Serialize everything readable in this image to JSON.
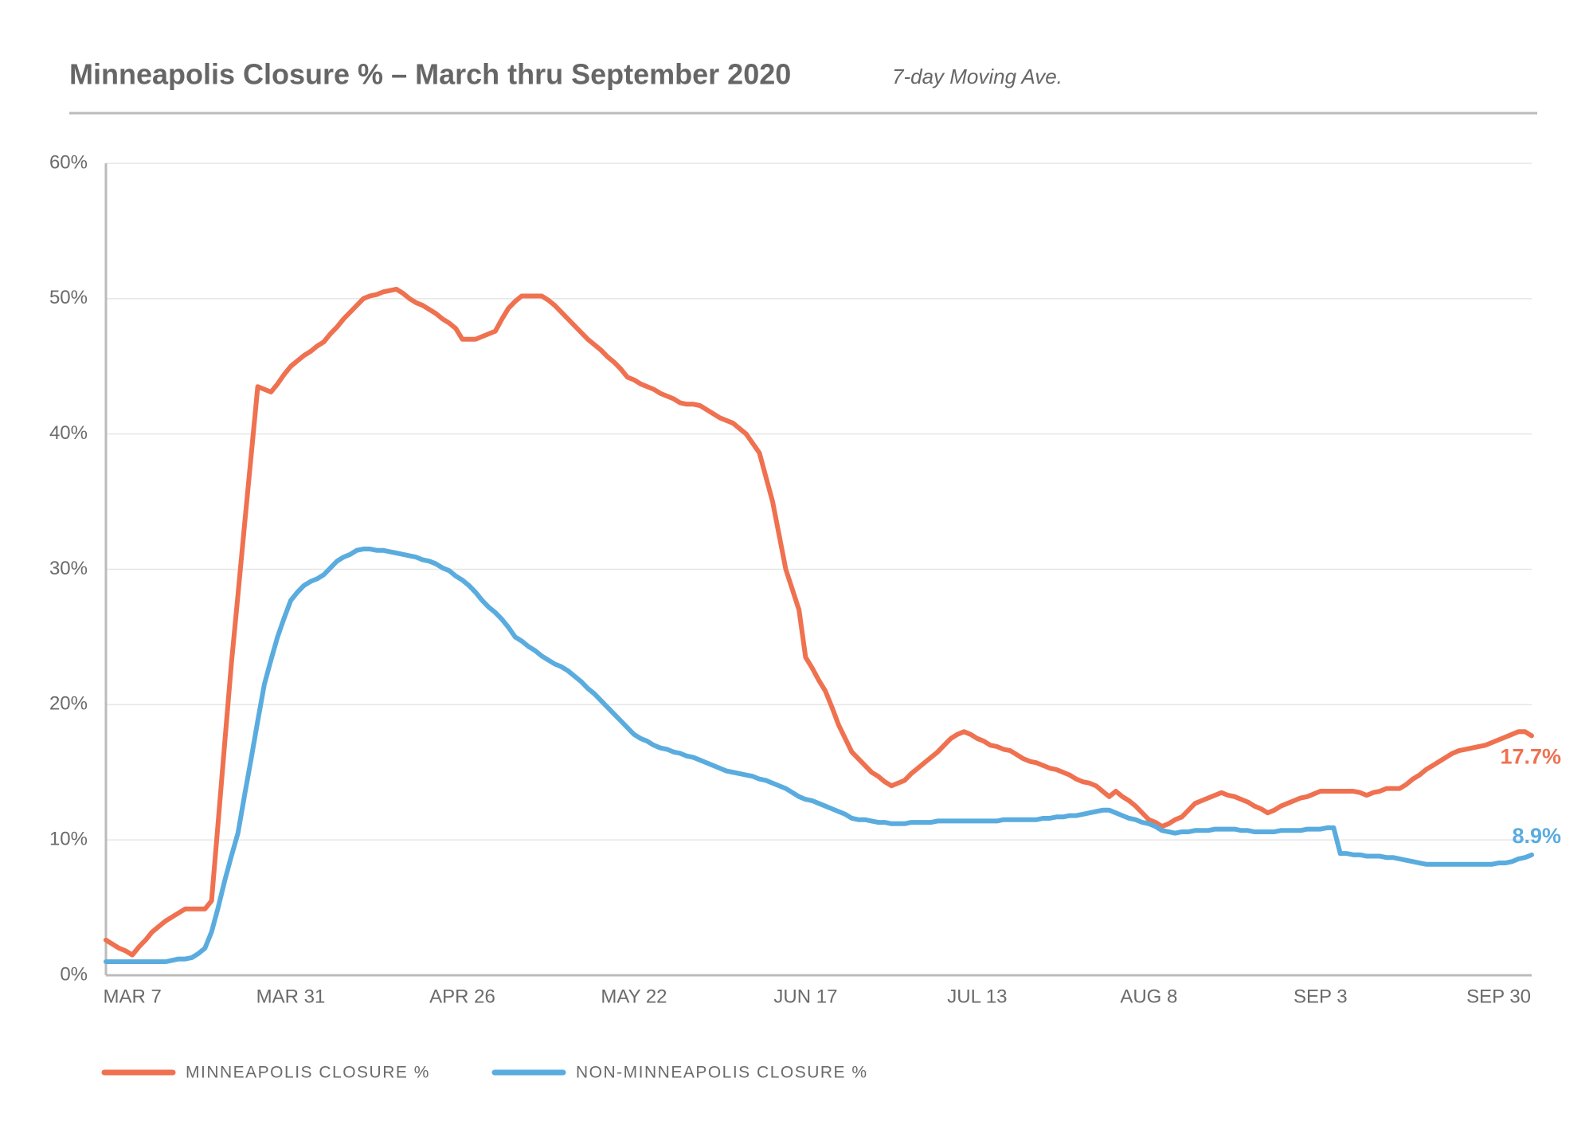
{
  "chart_data": {
    "type": "line",
    "title": "Minneapolis Closure % – March thru September 2020",
    "subtitle": "7-day Moving Ave.",
    "categories": [
      null,
      null,
      null,
      null,
      "MAR 7",
      null,
      null,
      null,
      null,
      null,
      null,
      null,
      null,
      null,
      null,
      null,
      null,
      null,
      null,
      null,
      null,
      null,
      null,
      null,
      null,
      null,
      null,
      null,
      "MAR 31",
      null,
      null,
      null,
      null,
      null,
      null,
      null,
      null,
      null,
      null,
      null,
      null,
      null,
      null,
      null,
      null,
      null,
      null,
      null,
      null,
      null,
      null,
      null,
      null,
      null,
      "APR 26",
      null,
      null,
      null,
      null,
      null,
      null,
      null,
      null,
      null,
      null,
      null,
      null,
      null,
      null,
      null,
      null,
      null,
      null,
      null,
      null,
      null,
      null,
      null,
      null,
      null,
      "MAY 22",
      null,
      null,
      null,
      null,
      null,
      null,
      null,
      null,
      null,
      null,
      null,
      null,
      null,
      null,
      null,
      null,
      null,
      null,
      null,
      null,
      null,
      null,
      null,
      null,
      null,
      "JUN 17",
      null,
      null,
      null,
      null,
      null,
      null,
      null,
      null,
      null,
      null,
      null,
      null,
      null,
      null,
      null,
      null,
      null,
      null,
      null,
      null,
      null,
      null,
      null,
      null,
      null,
      "JUL 13",
      null,
      null,
      null,
      null,
      null,
      null,
      null,
      null,
      null,
      null,
      null,
      null,
      null,
      null,
      null,
      null,
      null,
      null,
      null,
      null,
      null,
      null,
      null,
      null,
      null,
      "AUG 8",
      null,
      null,
      null,
      null,
      null,
      null,
      null,
      null,
      null,
      null,
      null,
      null,
      null,
      null,
      null,
      null,
      null,
      null,
      null,
      null,
      null,
      null,
      null,
      null,
      null,
      "SEP 3",
      null,
      null,
      null,
      null,
      null,
      null,
      null,
      null,
      null,
      null,
      null,
      null,
      null,
      null,
      null,
      null,
      null,
      null,
      null,
      null,
      null,
      null,
      null,
      null,
      null,
      null,
      "SEP 30",
      null,
      null,
      null,
      null,
      null
    ],
    "series": [
      {
        "name": "MINNEAPOLIS CLOSURE %",
        "color": "#ef7150",
        "end_label": "17.7%",
        "values": [
          2.6,
          2.3,
          2.0,
          1.8,
          1.5,
          2.1,
          2.6,
          3.2,
          3.6,
          4.0,
          4.3,
          4.6,
          4.9,
          4.9,
          4.9,
          4.9,
          5.5,
          11.3,
          17.2,
          23.0,
          28.1,
          33.3,
          38.4,
          43.5,
          43.3,
          43.1,
          43.7,
          44.4,
          45.0,
          45.4,
          45.8,
          46.1,
          46.5,
          46.8,
          47.4,
          47.9,
          48.5,
          49.0,
          49.5,
          50.0,
          50.2,
          50.3,
          50.5,
          50.6,
          50.7,
          50.4,
          50.0,
          49.7,
          49.5,
          49.2,
          48.9,
          48.5,
          48.2,
          47.8,
          47.0,
          47.0,
          47.0,
          47.2,
          47.4,
          47.6,
          48.5,
          49.3,
          49.8,
          50.2,
          50.2,
          50.2,
          50.2,
          49.9,
          49.5,
          49.0,
          48.5,
          48.0,
          47.5,
          47.0,
          46.6,
          46.2,
          45.7,
          45.3,
          44.8,
          44.2,
          44.0,
          43.7,
          43.5,
          43.3,
          43.0,
          42.8,
          42.6,
          42.3,
          42.2,
          42.2,
          42.1,
          41.8,
          41.5,
          41.2,
          41.0,
          40.8,
          40.4,
          40.0,
          39.3,
          38.6,
          36.8,
          35.0,
          32.5,
          30.0,
          28.5,
          27.0,
          23.5,
          22.7,
          21.8,
          21.0,
          19.8,
          18.5,
          17.5,
          16.5,
          16.0,
          15.5,
          15.0,
          14.7,
          14.3,
          14.0,
          14.2,
          14.4,
          14.9,
          15.3,
          15.7,
          16.1,
          16.5,
          17.0,
          17.5,
          17.8,
          18.0,
          17.8,
          17.5,
          17.3,
          17.0,
          16.9,
          16.7,
          16.6,
          16.3,
          16.0,
          15.8,
          15.7,
          15.5,
          15.3,
          15.2,
          15.0,
          14.8,
          14.5,
          14.3,
          14.2,
          14.0,
          13.6,
          13.2,
          13.6,
          13.2,
          12.9,
          12.5,
          12.0,
          11.5,
          11.3,
          11.0,
          11.2,
          11.5,
          11.7,
          12.2,
          12.7,
          12.9,
          13.1,
          13.3,
          13.5,
          13.3,
          13.2,
          13.0,
          12.8,
          12.5,
          12.3,
          12.0,
          12.2,
          12.5,
          12.7,
          12.9,
          13.1,
          13.2,
          13.4,
          13.6,
          13.6,
          13.6,
          13.6,
          13.6,
          13.6,
          13.5,
          13.3,
          13.5,
          13.6,
          13.8,
          13.8,
          13.8,
          14.1,
          14.5,
          14.8,
          15.2,
          15.5,
          15.8,
          16.1,
          16.4,
          16.6,
          16.7,
          16.8,
          16.9,
          17.0,
          17.2,
          17.4,
          17.6,
          17.8,
          18.0,
          18.0,
          17.7
        ]
      },
      {
        "name": "NON-MINNEAPOLIS CLOSURE %",
        "color": "#5aacdf",
        "end_label": "8.9%",
        "values": [
          1.0,
          1.0,
          1.0,
          1.0,
          1.0,
          1.0,
          1.0,
          1.0,
          1.0,
          1.0,
          1.1,
          1.2,
          1.2,
          1.3,
          1.6,
          2.0,
          3.2,
          5.0,
          7.0,
          8.8,
          10.5,
          13.3,
          16.0,
          18.8,
          21.5,
          23.3,
          25.0,
          26.4,
          27.7,
          28.3,
          28.8,
          29.1,
          29.3,
          29.6,
          30.1,
          30.6,
          30.9,
          31.1,
          31.4,
          31.5,
          31.5,
          31.4,
          31.4,
          31.3,
          31.2,
          31.1,
          31.0,
          30.9,
          30.7,
          30.6,
          30.4,
          30.1,
          29.9,
          29.5,
          29.2,
          28.8,
          28.3,
          27.7,
          27.2,
          26.8,
          26.3,
          25.7,
          25.0,
          24.7,
          24.3,
          24.0,
          23.6,
          23.3,
          23.0,
          22.8,
          22.5,
          22.1,
          21.7,
          21.2,
          20.8,
          20.3,
          19.8,
          19.3,
          18.8,
          18.3,
          17.8,
          17.5,
          17.3,
          17.0,
          16.8,
          16.7,
          16.5,
          16.4,
          16.2,
          16.1,
          15.9,
          15.7,
          15.5,
          15.3,
          15.1,
          15.0,
          14.9,
          14.8,
          14.7,
          14.5,
          14.4,
          14.2,
          14.0,
          13.8,
          13.5,
          13.2,
          13.0,
          12.9,
          12.7,
          12.5,
          12.3,
          12.1,
          11.9,
          11.6,
          11.5,
          11.5,
          11.4,
          11.3,
          11.3,
          11.2,
          11.2,
          11.2,
          11.3,
          11.3,
          11.3,
          11.3,
          11.4,
          11.4,
          11.4,
          11.4,
          11.4,
          11.4,
          11.4,
          11.4,
          11.4,
          11.4,
          11.5,
          11.5,
          11.5,
          11.5,
          11.5,
          11.5,
          11.6,
          11.6,
          11.7,
          11.7,
          11.8,
          11.8,
          11.9,
          12.0,
          12.1,
          12.2,
          12.2,
          12.0,
          11.8,
          11.6,
          11.5,
          11.3,
          11.2,
          11.0,
          10.7,
          10.6,
          10.5,
          10.6,
          10.6,
          10.7,
          10.7,
          10.7,
          10.8,
          10.8,
          10.8,
          10.8,
          10.7,
          10.7,
          10.6,
          10.6,
          10.6,
          10.6,
          10.7,
          10.7,
          10.7,
          10.7,
          10.8,
          10.8,
          10.8,
          10.9,
          10.9,
          9.0,
          9.0,
          8.9,
          8.9,
          8.8,
          8.8,
          8.8,
          8.7,
          8.7,
          8.6,
          8.5,
          8.4,
          8.3,
          8.2,
          8.2,
          8.2,
          8.2,
          8.2,
          8.2,
          8.2,
          8.2,
          8.2,
          8.2,
          8.2,
          8.3,
          8.3,
          8.4,
          8.6,
          8.7,
          8.9
        ]
      }
    ],
    "ylim": [
      0,
      60
    ],
    "yticks": [
      {
        "value": 0,
        "label": "0%"
      },
      {
        "value": 10,
        "label": "10%"
      },
      {
        "value": 20,
        "label": "20%"
      },
      {
        "value": 30,
        "label": "30%"
      },
      {
        "value": 40,
        "label": "40%"
      },
      {
        "value": 50,
        "label": "50%"
      },
      {
        "value": 60,
        "label": "60%"
      }
    ],
    "grid": true,
    "legend": "bottom"
  }
}
